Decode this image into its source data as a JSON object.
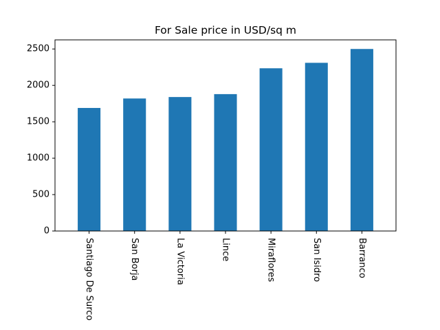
{
  "chart_data": {
    "type": "bar",
    "title": "For Sale price in USD/sq m",
    "xlabel": "",
    "ylabel": "",
    "categories": [
      "Santiago De Surco",
      "San Borja",
      "La Victoria",
      "Lince",
      "Miraflores",
      "San Isidro",
      "Barranco"
    ],
    "values": [
      1690,
      1820,
      1840,
      1880,
      2235,
      2310,
      2500
    ],
    "ylim": [
      0,
      2625
    ],
    "yticks": [
      0,
      500,
      1000,
      1500,
      2000,
      2500
    ],
    "grid": false,
    "legend": "none",
    "bar_color": "#1f77b4"
  }
}
